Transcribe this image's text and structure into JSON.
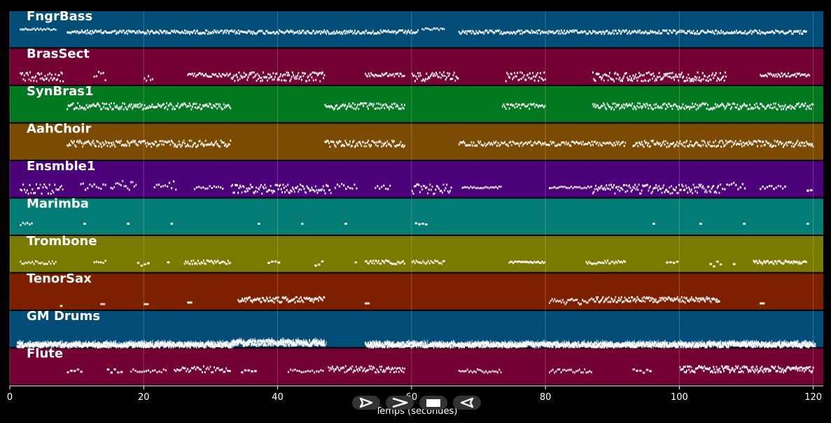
{
  "chart_data": {
    "type": "piano-roll",
    "xlabel": "Temps (secondes)",
    "xlim": [
      0,
      121.5
    ],
    "x_ticks": [
      0,
      20,
      40,
      60,
      80,
      100,
      120
    ],
    "grid": true,
    "tracks": [
      {
        "name": "FngrBass",
        "color": "#024d78",
        "segments": [
          [
            1.5,
            7,
            4,
            0.22,
            0.1
          ],
          [
            8.5,
            61,
            7,
            0.3,
            0.2
          ],
          [
            61.5,
            65,
            4,
            0.22,
            0.1
          ],
          [
            67,
            119,
            7,
            0.3,
            0.2
          ]
        ]
      },
      {
        "name": "BrasSect",
        "color": "#720032",
        "segments": [
          [
            1.5,
            8,
            7,
            0.5,
            0.55
          ],
          [
            12.5,
            14.5,
            3,
            0.5,
            0.6
          ],
          [
            20,
            21.5,
            3,
            0.5,
            0.6
          ],
          [
            26.5,
            33,
            6,
            0.45,
            0.2
          ],
          [
            33,
            47,
            8,
            0.5,
            0.5
          ],
          [
            53,
            59,
            6,
            0.45,
            0.2
          ],
          [
            60,
            67,
            7,
            0.5,
            0.5
          ],
          [
            74,
            80,
            7,
            0.5,
            0.5
          ],
          [
            87,
            107,
            8,
            0.5,
            0.5
          ],
          [
            112,
            119.5,
            6,
            0.45,
            0.2
          ]
        ]
      },
      {
        "name": "SynBras1",
        "color": "#037821",
        "segments": [
          [
            8.5,
            33,
            7,
            0.28,
            0.35
          ],
          [
            47,
            59,
            7,
            0.28,
            0.35
          ],
          [
            73.5,
            80,
            6,
            0.28,
            0.3
          ],
          [
            87,
            120,
            7,
            0.28,
            0.35
          ]
        ]
      },
      {
        "name": "AahChoir",
        "color": "#7b4a03",
        "segments": [
          [
            8.5,
            33,
            7,
            0.28,
            0.35
          ],
          [
            47,
            59,
            7,
            0.28,
            0.35
          ],
          [
            67,
            92,
            6,
            0.28,
            0.25
          ],
          [
            93,
            120,
            7,
            0.28,
            0.35
          ]
        ]
      },
      {
        "name": "Ensmble1",
        "color": "#4c0079",
        "segments": [
          [
            1.5,
            8,
            5,
            0.5,
            0.55
          ],
          [
            10.5,
            14.5,
            3,
            0.4,
            0.5
          ],
          [
            15,
            19,
            4,
            0.4,
            0.5
          ],
          [
            21.5,
            25,
            3,
            0.4,
            0.5
          ],
          [
            27.5,
            32,
            3,
            0.45,
            0.2
          ],
          [
            33,
            48,
            7,
            0.5,
            0.5
          ],
          [
            48.5,
            52,
            3,
            0.4,
            0.5
          ],
          [
            54.5,
            57,
            3,
            0.45,
            0.2
          ],
          [
            60,
            66,
            6,
            0.5,
            0.55
          ],
          [
            67.5,
            73.5,
            4,
            0.45,
            0.1
          ],
          [
            80.5,
            87,
            4,
            0.45,
            0.1
          ],
          [
            87,
            106,
            7,
            0.5,
            0.5
          ],
          [
            106,
            110,
            3,
            0.4,
            0.5
          ],
          [
            112,
            116,
            3,
            0.45,
            0.2
          ],
          [
            119,
            120,
            2,
            0.5,
            0.3
          ]
        ]
      },
      {
        "name": "Marimba",
        "color": "#027c75",
        "segments": [
          [
            1.5,
            3.5,
            3,
            0.42,
            0.2
          ],
          [
            11,
            11.5,
            1,
            0.42,
            0
          ],
          [
            17.5,
            18,
            1,
            0.42,
            0
          ],
          [
            24,
            24.5,
            1,
            0.42,
            0
          ],
          [
            37,
            37.5,
            1,
            0.42,
            0
          ],
          [
            43.5,
            44,
            1,
            0.42,
            0
          ],
          [
            50,
            50.5,
            1,
            0.42,
            0
          ],
          [
            60.5,
            62.5,
            2,
            0.42,
            0.1
          ],
          [
            96,
            96.5,
            1,
            0.42,
            0
          ],
          [
            103,
            103.5,
            1,
            0.42,
            0
          ],
          [
            109.5,
            110,
            1,
            0.42,
            0
          ],
          [
            119,
            119.5,
            1,
            0.42,
            0
          ]
        ]
      },
      {
        "name": "Trombone",
        "color": "#7a7a00",
        "segments": [
          [
            1.5,
            7,
            4,
            0.45,
            0.2
          ],
          [
            12.5,
            14.5,
            3,
            0.45,
            0.2
          ],
          [
            19,
            21,
            2,
            0.5,
            0.3
          ],
          [
            23.5,
            24,
            1,
            0.45,
            0
          ],
          [
            26,
            33,
            6,
            0.45,
            0.2
          ],
          [
            38.5,
            40.5,
            2,
            0.45,
            0.1
          ],
          [
            45.5,
            47,
            2,
            0.5,
            0.3
          ],
          [
            51.5,
            52,
            1,
            0.45,
            0
          ],
          [
            53,
            59,
            6,
            0.45,
            0.2
          ],
          [
            60,
            65,
            5,
            0.45,
            0.2
          ],
          [
            74.5,
            80,
            5,
            0.45,
            0.1
          ],
          [
            86,
            92,
            5,
            0.45,
            0.2
          ],
          [
            98,
            100,
            2,
            0.45,
            0.1
          ],
          [
            104.5,
            106.5,
            2,
            0.5,
            0.3
          ],
          [
            108,
            108.5,
            1,
            0.5,
            0
          ],
          [
            111,
            119,
            7,
            0.45,
            0.2
          ]
        ]
      },
      {
        "name": "TenorSax",
        "color": "#7d2000",
        "segments": [
          [
            7.5,
            8,
            1,
            0.55,
            0.3
          ],
          [
            13.5,
            14.5,
            1,
            0.55,
            0.1
          ],
          [
            20,
            21,
            1,
            0.55,
            0.1
          ],
          [
            26.5,
            27.5,
            1,
            0.55,
            0.1
          ],
          [
            34,
            47,
            8,
            0.45,
            0.3
          ],
          [
            53,
            54,
            1,
            0.55,
            0
          ],
          [
            80.5,
            87,
            5,
            0.5,
            0.35
          ],
          [
            87,
            106,
            8,
            0.45,
            0.3
          ],
          [
            112,
            113,
            1,
            0.55,
            0
          ]
        ]
      },
      {
        "name": "GM Drums",
        "color": "#024d78",
        "segments": [
          [
            1,
            33,
            14,
            0.65,
            0.25
          ],
          [
            33,
            47,
            14,
            0.6,
            0.3
          ],
          [
            53,
            120,
            14,
            0.65,
            0.25
          ]
        ]
      },
      {
        "name": "Flute",
        "color": "#720032",
        "segments": [
          [
            8.5,
            11,
            2,
            0.35,
            0.2
          ],
          [
            14.5,
            17,
            2,
            0.35,
            0.2
          ],
          [
            18,
            23.5,
            3,
            0.35,
            0.2
          ],
          [
            24.5,
            33,
            5,
            0.3,
            0.35
          ],
          [
            34.5,
            37,
            2,
            0.35,
            0.2
          ],
          [
            41.5,
            47,
            3,
            0.35,
            0.2
          ],
          [
            47.5,
            59,
            7,
            0.3,
            0.35
          ],
          [
            67,
            73.5,
            4,
            0.35,
            0.2
          ],
          [
            80.5,
            87,
            4,
            0.35,
            0.2
          ],
          [
            93,
            96,
            2,
            0.35,
            0.2
          ],
          [
            100,
            120,
            9,
            0.3,
            0.35
          ]
        ]
      }
    ]
  },
  "controls": [
    {
      "name": "play-button",
      "icon": "play-icon"
    },
    {
      "name": "forward-button",
      "icon": "forward-icon"
    },
    {
      "name": "stop-button",
      "icon": "stop-icon"
    },
    {
      "name": "rewind-button",
      "icon": "rewind-icon"
    }
  ]
}
